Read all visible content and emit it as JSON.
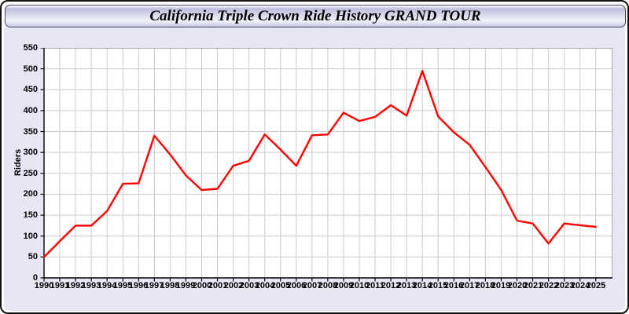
{
  "window": {
    "title": "California Triple Crown Ride History GRAND TOUR"
  },
  "chart_data": {
    "type": "line",
    "title": "California Triple Crown Ride History GRAND TOUR",
    "xlabel": "",
    "ylabel": "Riders",
    "x": [
      1990,
      1991,
      1992,
      1993,
      1994,
      1995,
      1996,
      1997,
      1998,
      1999,
      2000,
      2001,
      2002,
      2003,
      2004,
      2005,
      2006,
      2007,
      2008,
      2009,
      2010,
      2011,
      2012,
      2013,
      2014,
      2015,
      2016,
      2017,
      2018,
      2019,
      2020,
      2021,
      2022,
      2023,
      2024,
      2025
    ],
    "series": [
      {
        "name": "Riders",
        "color": "#ff0000",
        "values": [
          50,
          88,
          125,
          125,
          160,
          225,
          226,
          340,
          295,
          245,
          210,
          213,
          268,
          280,
          343,
          307,
          268,
          341,
          343,
          395,
          375,
          385,
          413,
          388,
          495,
          386,
          348,
          318,
          265,
          210,
          137,
          130,
          82,
          130,
          126,
          122
        ]
      }
    ],
    "ylim": [
      0,
      550
    ],
    "yticks": [
      0,
      50,
      100,
      150,
      200,
      250,
      300,
      350,
      400,
      450,
      500,
      550
    ],
    "grid": true,
    "legend": "none"
  },
  "colors": {
    "line": "#ff0000",
    "body_background": "#e6e6f4",
    "plot_background": "#ffffff",
    "gridline": "#cccccc",
    "plot_border": "#555566",
    "axis": "#000000"
  }
}
